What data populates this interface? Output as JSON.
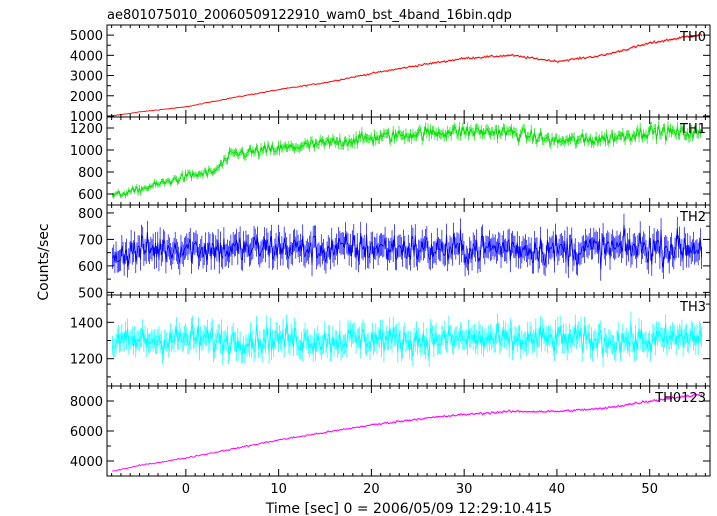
{
  "chart_data": {
    "type": "line",
    "title": "ae801075010_20060509122910_wam0_bst_4band_16bin.qdp",
    "xlabel": "Time [sec] 0 = 2006/05/09 12:29:10.415",
    "ylabel": "Counts/sec",
    "xlim": [
      -8.5,
      56.5
    ],
    "x_ticks": [
      0,
      10,
      20,
      30,
      40,
      50
    ],
    "grid": false,
    "legend": "none",
    "panels": [
      {
        "name": "TH0",
        "color": "#ff0000",
        "ylim": [
          950,
          5500
        ],
        "y_ticks": [
          1000,
          2000,
          3000,
          4000,
          5000
        ],
        "x": [
          -8,
          -5,
          0,
          5,
          10,
          15,
          20,
          25,
          30,
          35,
          40,
          45,
          50,
          55
        ],
        "values": [
          1000,
          1200,
          1450,
          1900,
          2300,
          2650,
          3100,
          3500,
          3850,
          4000,
          3700,
          4000,
          4600,
          5000
        ]
      },
      {
        "name": "TH1",
        "color": "#00e000",
        "ylim": [
          500,
          1300
        ],
        "y_ticks": [
          600,
          800,
          1000,
          1200
        ],
        "x": [
          -8,
          -5,
          0,
          3,
          5,
          10,
          15,
          20,
          25,
          30,
          35,
          40,
          45,
          50,
          55
        ],
        "values": [
          580,
          640,
          760,
          800,
          960,
          1010,
          1060,
          1110,
          1150,
          1170,
          1160,
          1080,
          1100,
          1170,
          1150
        ]
      },
      {
        "name": "TH2",
        "color": "#0000ff",
        "ylim": [
          490,
          830
        ],
        "y_ticks": [
          500,
          600,
          700,
          800
        ],
        "x": [
          -8,
          -5,
          0,
          5,
          10,
          15,
          20,
          25,
          30,
          35,
          40,
          45,
          50,
          55
        ],
        "values": [
          640,
          660,
          670,
          660,
          670,
          660,
          670,
          665,
          660,
          670,
          660,
          665,
          670,
          670
        ]
      },
      {
        "name": "TH3",
        "color": "#00ffff",
        "ylim": [
          1050,
          1550
        ],
        "y_ticks": [
          1200,
          1400
        ],
        "x": [
          -8,
          -5,
          0,
          5,
          10,
          15,
          20,
          25,
          30,
          35,
          40,
          45,
          50,
          55
        ],
        "values": [
          1280,
          1300,
          1310,
          1300,
          1310,
          1300,
          1310,
          1300,
          1310,
          1300,
          1310,
          1300,
          1300,
          1320
        ]
      },
      {
        "name": "TH0123",
        "color": "#ff00ff",
        "ylim": [
          3000,
          9000
        ],
        "y_ticks": [
          4000,
          6000,
          8000
        ],
        "x": [
          -8,
          -5,
          0,
          5,
          10,
          15,
          20,
          25,
          30,
          35,
          40,
          45,
          50,
          55
        ],
        "values": [
          3300,
          3700,
          4200,
          4800,
          5400,
          5900,
          6400,
          6800,
          7100,
          7300,
          7300,
          7500,
          8000,
          8400
        ]
      }
    ]
  }
}
